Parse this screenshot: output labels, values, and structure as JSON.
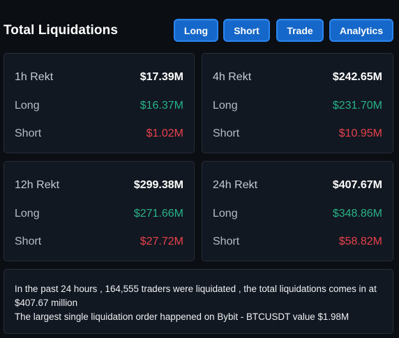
{
  "header": {
    "title": "Total Liquidations",
    "buttons": {
      "long": "Long",
      "short": "Short",
      "trade": "Trade",
      "analytics": "Analytics"
    }
  },
  "cards": [
    {
      "period": "1h Rekt",
      "total": "$17.39M",
      "long_label": "Long",
      "long": "$16.37M",
      "short_label": "Short",
      "short": "$1.02M"
    },
    {
      "period": "4h Rekt",
      "total": "$242.65M",
      "long_label": "Long",
      "long": "$231.70M",
      "short_label": "Short",
      "short": "$10.95M"
    },
    {
      "period": "12h Rekt",
      "total": "$299.38M",
      "long_label": "Long",
      "long": "$271.66M",
      "short_label": "Short",
      "short": "$27.72M"
    },
    {
      "period": "24h Rekt",
      "total": "$407.67M",
      "long_label": "Long",
      "long": "$348.86M",
      "short_label": "Short",
      "short": "$58.82M"
    }
  ],
  "summary": {
    "line1": "In the past 24 hours , 164,555 traders were liquidated , the total liquidations comes in at $407.67 million",
    "line2": "The largest single liquidation order happened on Bybit - BTCUSDT value $1.98M"
  },
  "colors": {
    "background": "#0b0e13",
    "card": "#121821",
    "button": "#1567c9",
    "long": "#28b287",
    "short": "#e8414b"
  }
}
